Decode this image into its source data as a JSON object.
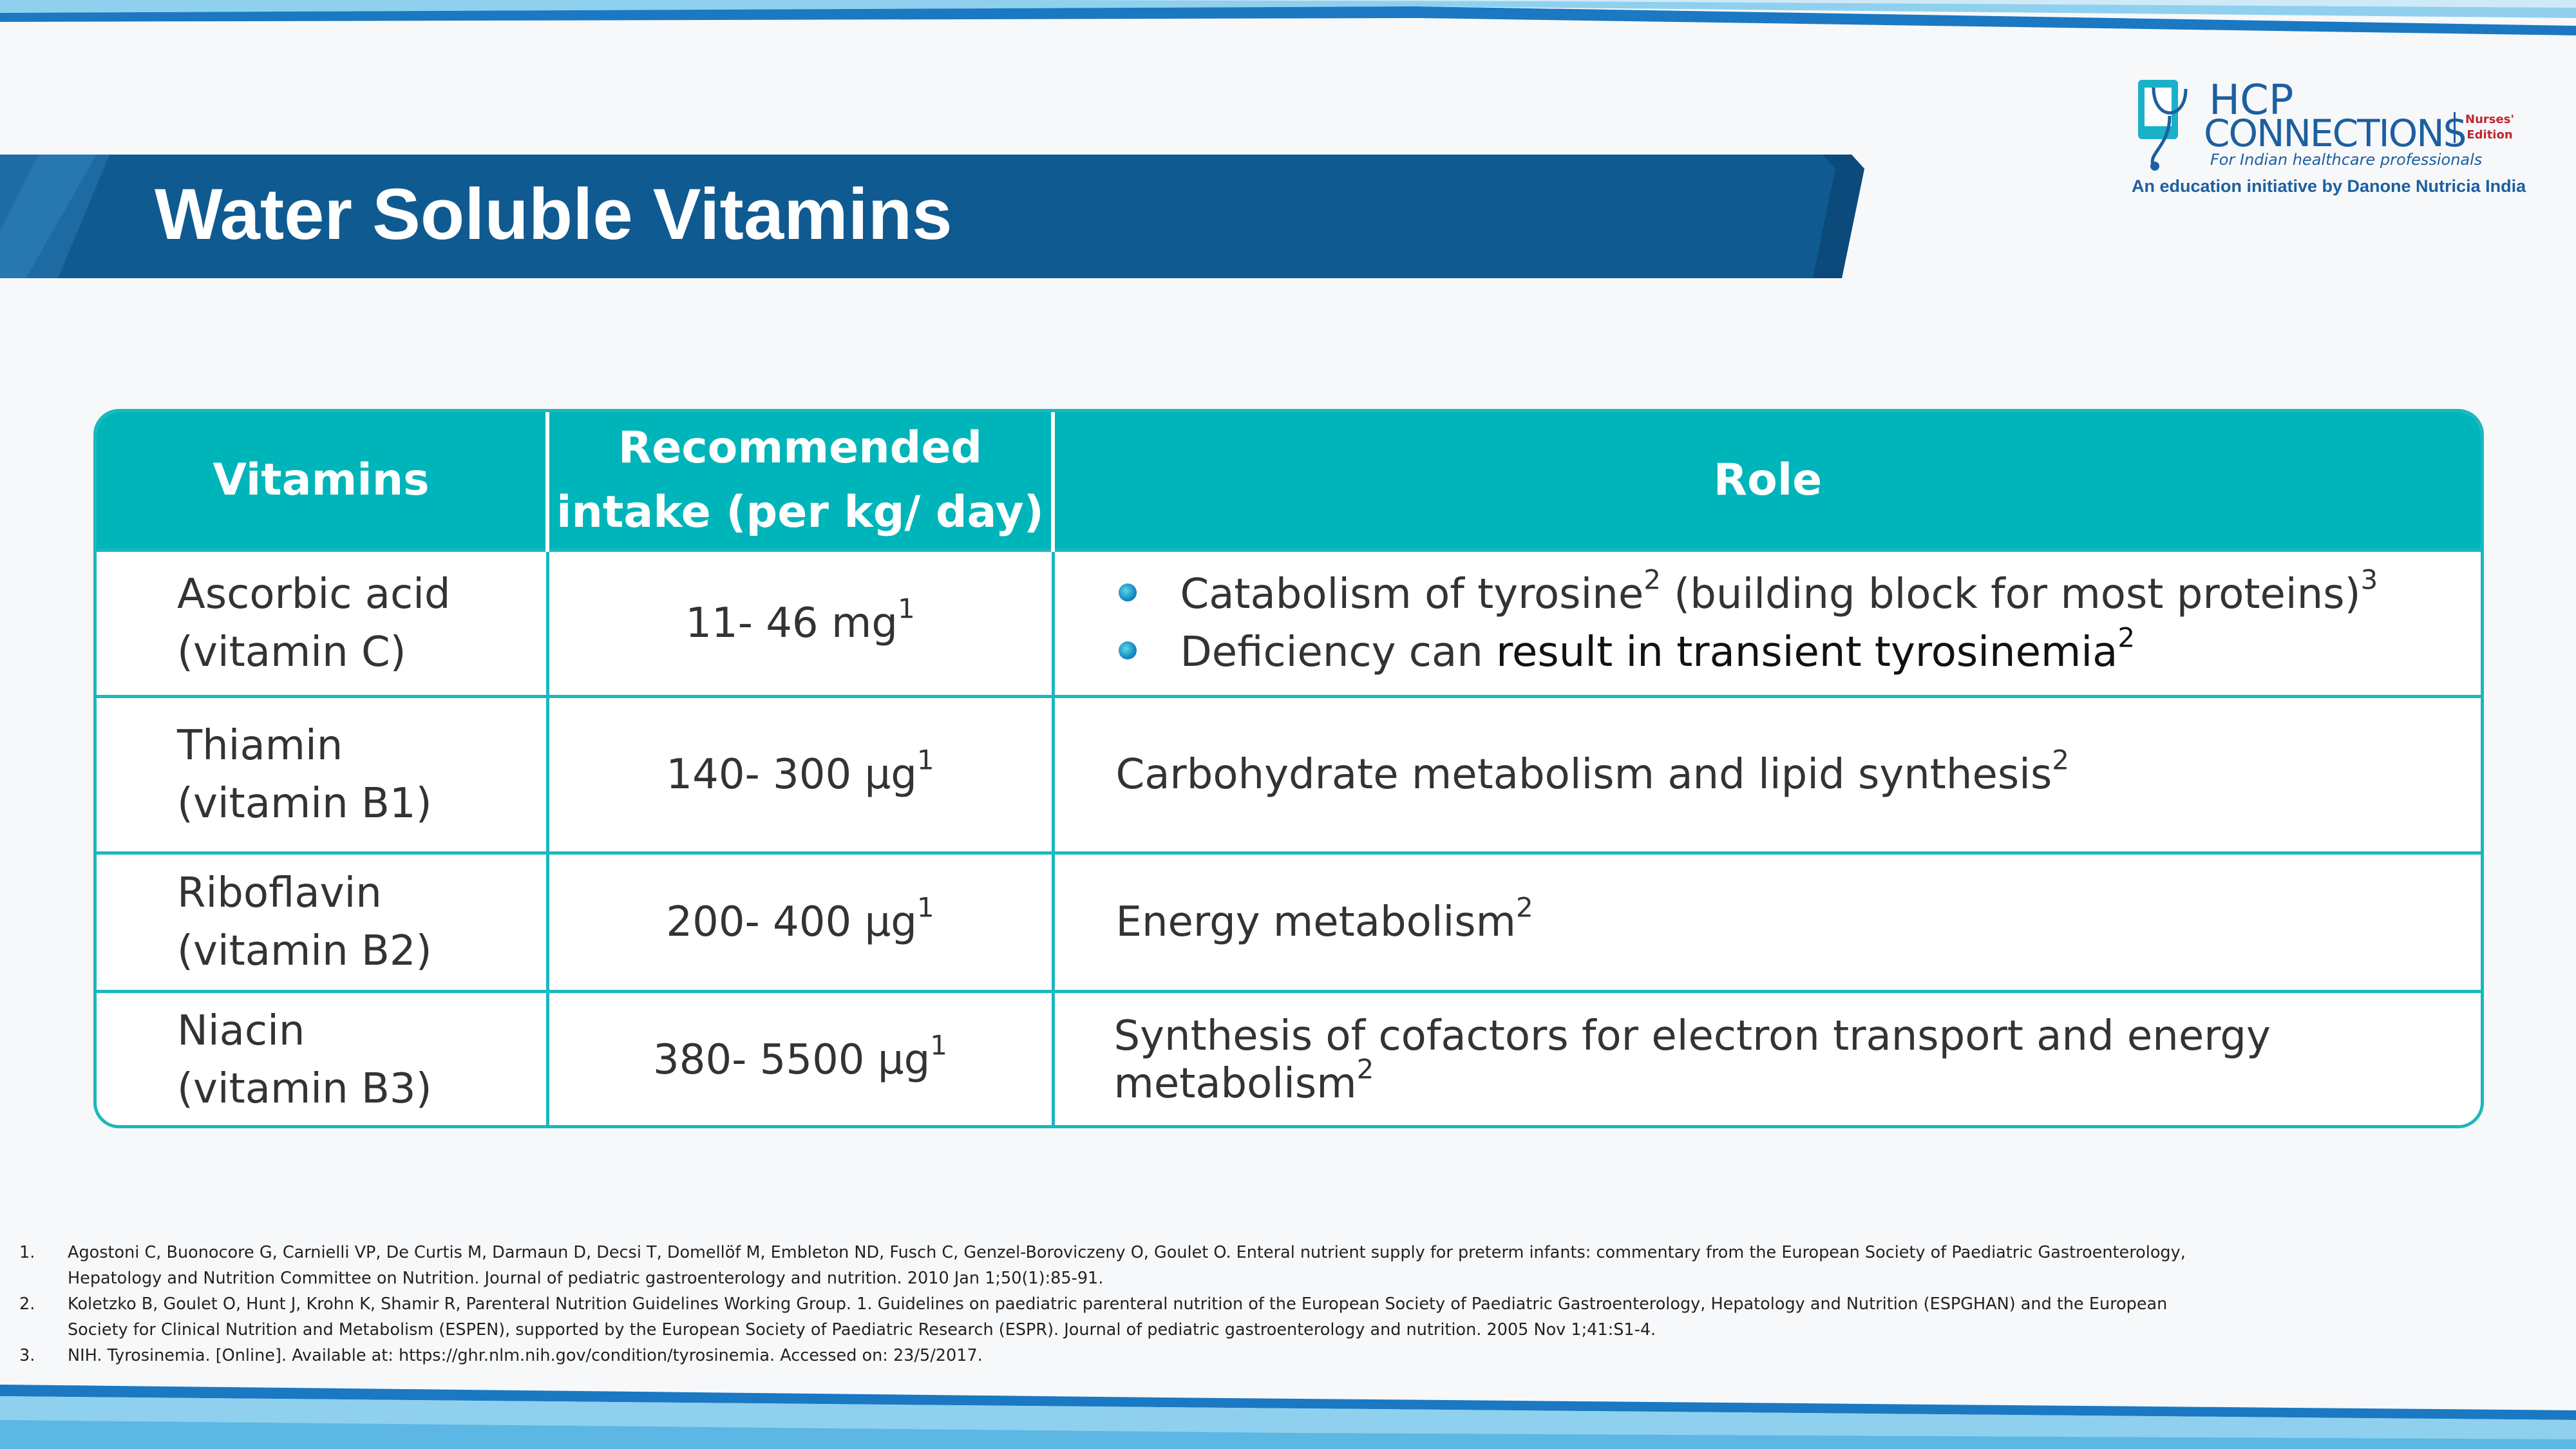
{
  "slide": {
    "title": "Water Soluble Vitamins"
  },
  "logo": {
    "line1": "HCP",
    "line2": "CONNECTIONS",
    "edition_line1": "Nurses'",
    "edition_line2": "Edition",
    "tagline": "For Indian healthcare professionals",
    "subtitle": "An education initiative by Danone Nutricia India"
  },
  "table": {
    "headers": {
      "vitamins": "Vitamins",
      "intake_line1": "Recommended",
      "intake_line2": "intake (per kg/ day)",
      "role": "Role"
    },
    "rows": [
      {
        "name_line1": "Ascorbic acid",
        "name_line2": "(vitamin C)",
        "intake": "11- 46 mg",
        "intake_ref": "1",
        "role_bullets": [
          {
            "text": "Catabolism of tyrosine",
            "ref": "2",
            "text2": " (building block for most proteins)",
            "ref2": "3"
          },
          {
            "text": "Deficiency can ",
            "emph": "result in transient tyrosinemia",
            "ref": "2"
          }
        ]
      },
      {
        "name_line1": "Thiamin",
        "name_line2": "(vitamin B1)",
        "intake": "140- 300 µg",
        "intake_ref": "1",
        "role": "Carbohydrate metabolism and lipid synthesis",
        "role_ref": "2"
      },
      {
        "name_line1": "Riboflavin",
        "name_line2": "(vitamin B2)",
        "intake": "200- 400 µg",
        "intake_ref": "1",
        "role": "Energy metabolism",
        "role_ref": "2"
      },
      {
        "name_line1": "Niacin",
        "name_line2": "(vitamin B3)",
        "intake": "380- 5500 µg",
        "intake_ref": "1",
        "role": "Synthesis of cofactors for electron transport and energy metabolism",
        "role_ref": "2"
      }
    ]
  },
  "references": [
    {
      "num": "1.",
      "line1": "Agostoni C, Buonocore G, Carnielli VP, De Curtis M, Darmaun D, Decsi T, Domellöf M, Embleton ND, Fusch C, Genzel-Boroviczeny O, Goulet O. Enteral nutrient supply for preterm infants: commentary from the European Society of Paediatric Gastroenterology,",
      "line2": "Hepatology and Nutrition Committee on Nutrition. Journal of pediatric gastroenterology and nutrition. 2010 Jan 1;50(1):85-91."
    },
    {
      "num": "2.",
      "line1": "Koletzko B, Goulet O, Hunt J, Krohn K, Shamir R, Parenteral Nutrition Guidelines Working Group. 1. Guidelines on paediatric parenteral nutrition of the European Society of Paediatric Gastroenterology, Hepatology and Nutrition (ESPGHAN) and the European",
      "line2": "Society for Clinical Nutrition and Metabolism (ESPEN), supported by the European Society of Paediatric Research (ESPR). Journal of pediatric gastroenterology and nutrition. 2005 Nov 1;41:S1-4."
    },
    {
      "num": "3.",
      "line1": "NIH. Tyrosinemia. [Online]. Available at: https://ghr.nlm.nih.gov/condition/tyrosinemia. Accessed on: 23/5/2017.",
      "line2": ""
    }
  ],
  "colors": {
    "title_banner": "#0f5a91",
    "table_header": "#00b5ba",
    "table_border": "#1ab8bd",
    "brand_blue": "#1d5fa0"
  }
}
